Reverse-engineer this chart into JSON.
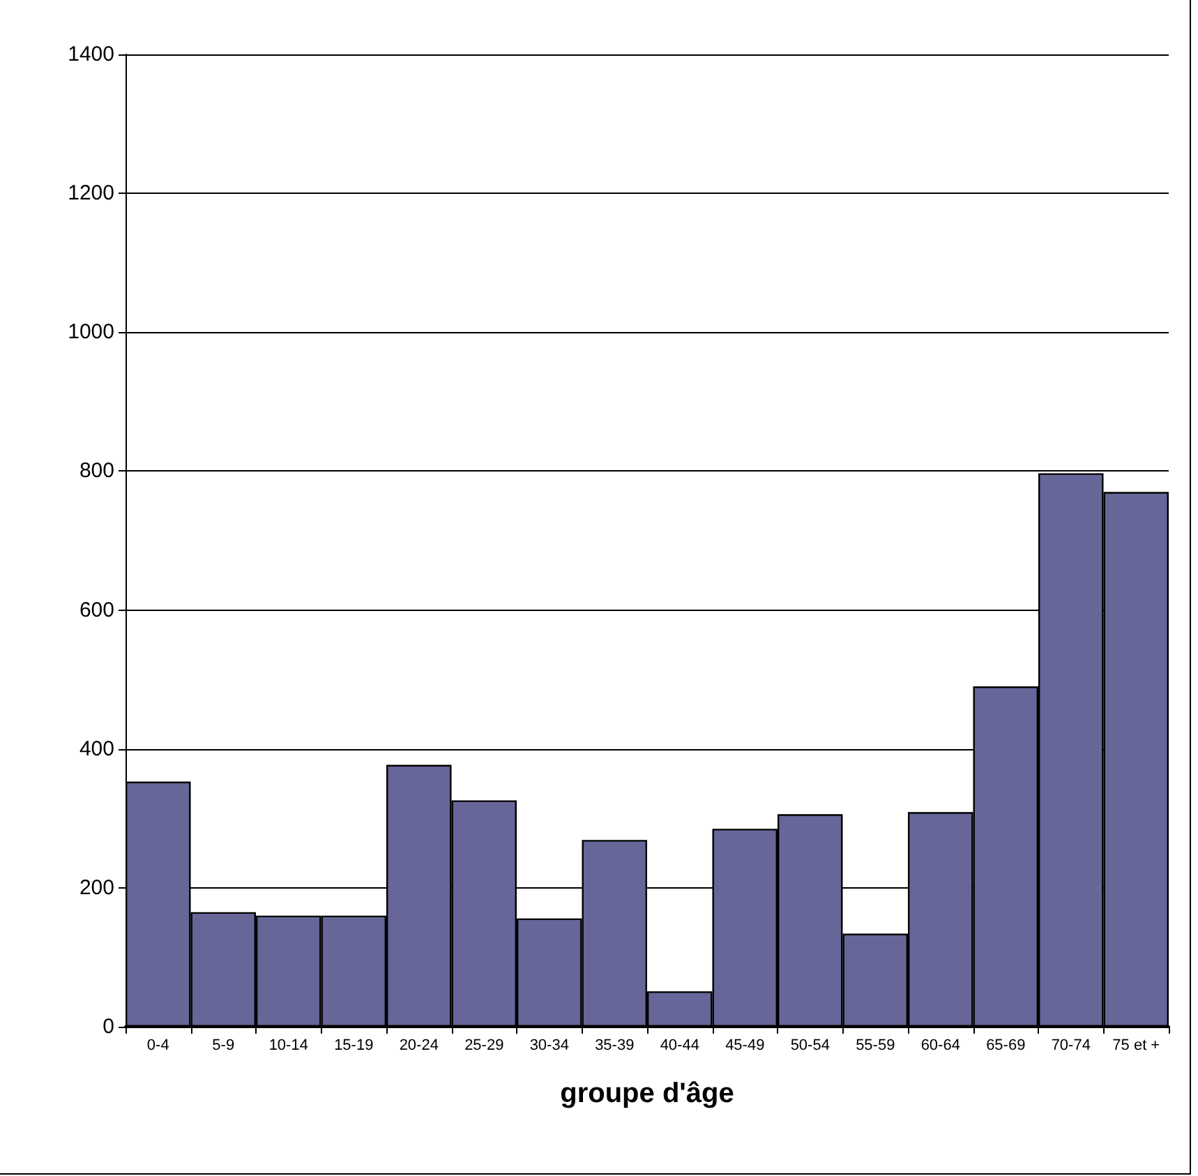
{
  "chart_data": {
    "type": "bar",
    "xlabel": "groupe d'âge",
    "categories": [
      "0-4",
      "5-9",
      "10-14",
      "15-19",
      "20-24",
      "25-29",
      "30-34",
      "35-39",
      "40-44",
      "45-49",
      "50-54",
      "55-59",
      "60-64",
      "65-69",
      "70-74",
      "75 et +"
    ],
    "values": [
      353,
      165,
      160,
      160,
      377,
      326,
      156,
      269,
      51,
      285,
      306,
      134,
      309,
      490,
      797,
      770
    ],
    "color": "#666699",
    "ylim": [
      0,
      1400
    ],
    "yticks": [
      0,
      200,
      400,
      600,
      800,
      1000,
      1200,
      1400
    ],
    "grid": "y"
  }
}
